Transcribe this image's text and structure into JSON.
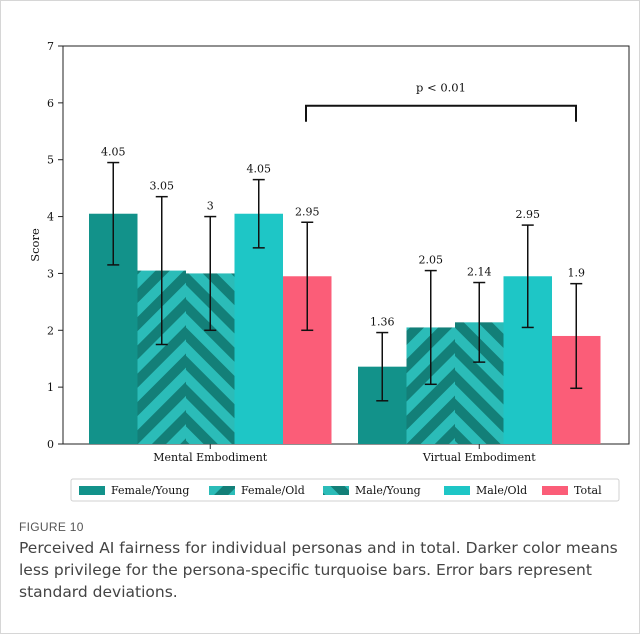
{
  "figure": {
    "label": "FIGURE 10",
    "caption": "Perceived AI fairness for individual personas and in total. Darker color means less privilege for the persona-specific turquoise bars. Error bars represent standard deviations."
  },
  "colors": {
    "female_young": "#12928a",
    "female_old": "#1aa8a4",
    "male_young": "#1fb2ae",
    "male_old": "#1ec6c6",
    "total": "#fb5d78",
    "hatch_dark": "#137f78",
    "hatch_light": "#2bbcb8"
  },
  "chart_data": {
    "type": "bar",
    "ylabel": "Score",
    "xlabel": "",
    "ylim": [
      0,
      7
    ],
    "yticks": [
      "0",
      "1",
      "2",
      "3",
      "4",
      "5",
      "6",
      "7"
    ],
    "categories": [
      "Mental Embodiment",
      "Virtual Embodiment"
    ],
    "series": [
      {
        "name": "Female/Young",
        "key": "female_young",
        "hatch": "none",
        "values": [
          4.05,
          1.36
        ],
        "labels": [
          "4.05",
          "1.36"
        ],
        "sd": [
          0.9,
          0.6
        ]
      },
      {
        "name": "Female/Old",
        "key": "female_old",
        "hatch": "diag-up",
        "values": [
          3.05,
          2.05
        ],
        "labels": [
          "3.05",
          "2.05"
        ],
        "sd": [
          1.3,
          1.0
        ]
      },
      {
        "name": "Male/Young",
        "key": "male_young",
        "hatch": "diag-down",
        "values": [
          3.0,
          2.14
        ],
        "labels": [
          "3",
          "2.14"
        ],
        "sd": [
          1.0,
          0.7
        ]
      },
      {
        "name": "Male/Old",
        "key": "male_old",
        "hatch": "none",
        "values": [
          4.05,
          2.95
        ],
        "labels": [
          "4.05",
          "2.95"
        ],
        "sd": [
          0.6,
          0.9
        ]
      },
      {
        "name": "Total",
        "key": "total",
        "hatch": "none",
        "values": [
          2.95,
          1.9
        ],
        "labels": [
          "2.95",
          "1.9"
        ],
        "sd": [
          0.95,
          0.92
        ]
      }
    ],
    "annotation": {
      "text": "p < 0.01",
      "y": 5.95
    },
    "legend": {
      "placement": "bottom"
    },
    "grid": false
  }
}
